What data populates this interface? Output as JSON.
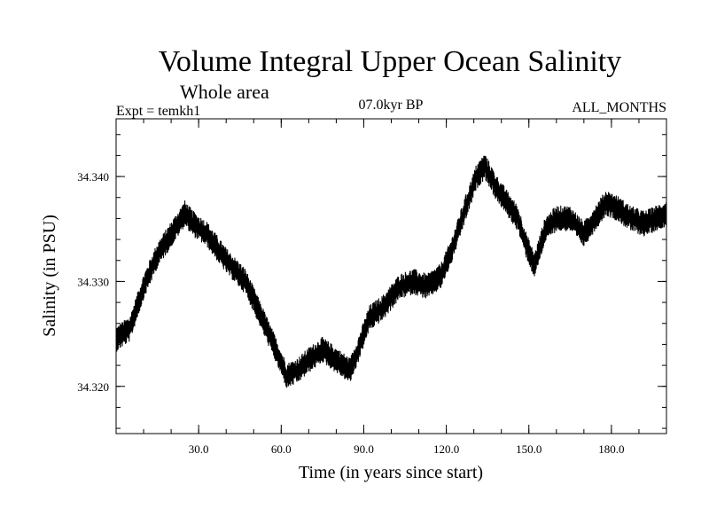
{
  "chart_data": {
    "type": "line",
    "title": "Volume Integral Upper Ocean Salinity",
    "subtitle": "Whole area",
    "experiment": "Expt = temkh1",
    "period": "07.0kyr BP",
    "months": "ALL_MONTHS",
    "xlabel": "Time (in years since start)",
    "ylabel": "Salinity (in PSU)",
    "xlim": [
      0,
      200
    ],
    "ylim": [
      34.3155,
      34.3455
    ],
    "x_ticks": [
      30,
      60,
      90,
      120,
      150,
      180
    ],
    "x_tick_labels": [
      "30.0",
      "60.0",
      "90.0",
      "120.0",
      "150.0",
      "180.0"
    ],
    "y_ticks": [
      34.32,
      34.33,
      34.34
    ],
    "y_tick_labels": [
      "34.320",
      "34.330",
      "34.340"
    ],
    "x_minor_step": 10,
    "y_minor_step": 0.002,
    "x_step": 0.0833,
    "noise_amplitude": 0.0012,
    "series": [
      {
        "name": "Salinity",
        "color": "#000000",
        "trend": [
          [
            0,
            34.3245
          ],
          [
            5,
            34.3255
          ],
          [
            10,
            34.3295
          ],
          [
            15,
            34.3325
          ],
          [
            20,
            34.3345
          ],
          [
            25,
            34.3365
          ],
          [
            28,
            34.3355
          ],
          [
            33,
            34.3345
          ],
          [
            40,
            34.332
          ],
          [
            47,
            34.33
          ],
          [
            53,
            34.3265
          ],
          [
            58,
            34.3235
          ],
          [
            62,
            34.321
          ],
          [
            66,
            34.3215
          ],
          [
            70,
            34.3225
          ],
          [
            75,
            34.3235
          ],
          [
            80,
            34.3225
          ],
          [
            85,
            34.3215
          ],
          [
            88,
            34.3235
          ],
          [
            92,
            34.3265
          ],
          [
            97,
            34.3275
          ],
          [
            103,
            34.3295
          ],
          [
            108,
            34.33
          ],
          [
            113,
            34.3295
          ],
          [
            118,
            34.3305
          ],
          [
            122,
            34.333
          ],
          [
            127,
            34.337
          ],
          [
            131,
            34.34
          ],
          [
            134,
            34.341
          ],
          [
            138,
            34.339
          ],
          [
            142,
            34.3375
          ],
          [
            146,
            34.336
          ],
          [
            149,
            34.3335
          ],
          [
            152,
            34.3315
          ],
          [
            156,
            34.335
          ],
          [
            160,
            34.336
          ],
          [
            165,
            34.336
          ],
          [
            170,
            34.3345
          ],
          [
            174,
            34.336
          ],
          [
            178,
            34.3375
          ],
          [
            182,
            34.337
          ],
          [
            187,
            34.336
          ],
          [
            192,
            34.3355
          ],
          [
            196,
            34.336
          ],
          [
            200,
            34.3365
          ]
        ]
      }
    ]
  }
}
